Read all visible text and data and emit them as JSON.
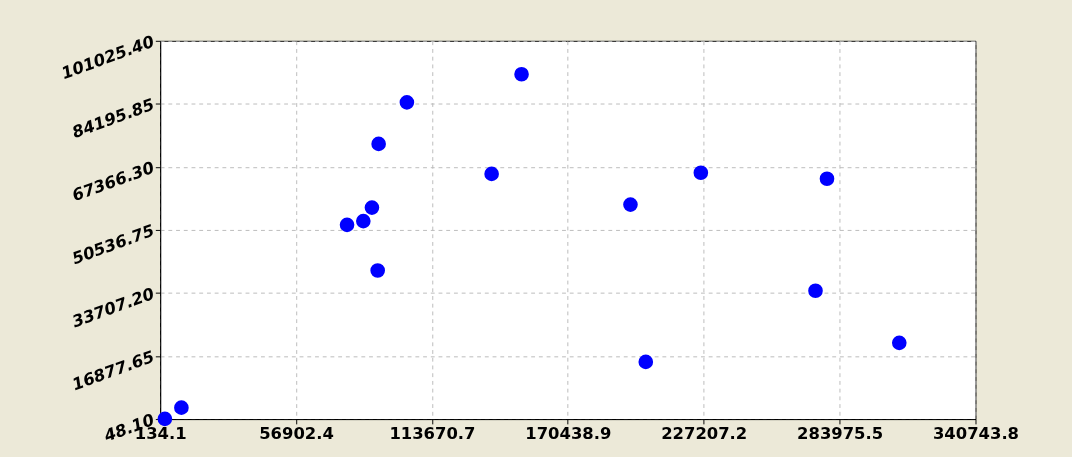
{
  "chart_data": {
    "type": "scatter",
    "marker": "circle",
    "grid": true,
    "xlim": [
      134.1,
      340743.8
    ],
    "xticks": [
      {
        "value": 134.1,
        "label": "134.1"
      },
      {
        "value": 56902.4,
        "label": "56902.4"
      },
      {
        "value": 113670.7,
        "label": "113670.7"
      },
      {
        "value": 170438.9,
        "label": "170438.9"
      },
      {
        "value": 227207.2,
        "label": "227207.2"
      },
      {
        "value": 283975.5,
        "label": "283975.5"
      },
      {
        "value": 340743.8,
        "label": "340743.8"
      }
    ],
    "ylim": [
      48.1,
      101025.4
    ],
    "yticks": [
      {
        "value": 48.1,
        "label": "48.10"
      },
      {
        "value": 16877.65,
        "label": "16877.65"
      },
      {
        "value": 33707.2,
        "label": "33707.20"
      },
      {
        "value": 50536.75,
        "label": "50536.75"
      },
      {
        "value": 67366.3,
        "label": "67366.30"
      },
      {
        "value": 84195.85,
        "label": "84195.85"
      },
      {
        "value": 101025.4,
        "label": "101025.40"
      }
    ],
    "series": [
      {
        "color": "#0000ff",
        "x": [
          2100,
          9000,
          78200,
          85000,
          88600,
          91000,
          91400,
          103200,
          138600,
          151100,
          196600,
          203000,
          226000,
          273900,
          278700,
          308900
        ],
        "values": [
          100,
          3100,
          51900,
          52900,
          56500,
          39700,
          73500,
          84600,
          65500,
          92100,
          57300,
          15300,
          65800,
          34300,
          64200,
          20400
        ]
      }
    ]
  }
}
